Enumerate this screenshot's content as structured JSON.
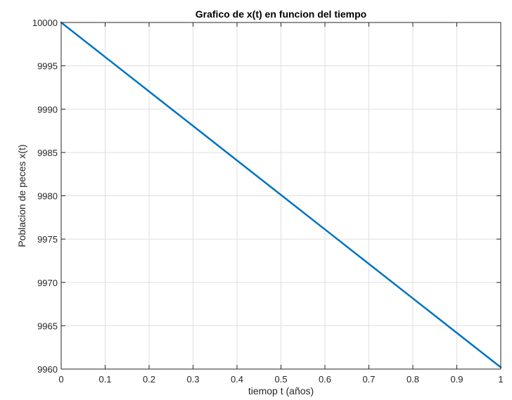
{
  "chart_data": {
    "type": "line",
    "title": "Grafico de x(t) en funcion del tiempo",
    "xlabel": "tiemop t (años)",
    "ylabel": "Poblacion de peces x(t)",
    "xlim": [
      0,
      1
    ],
    "ylim": [
      9960,
      10000
    ],
    "x_ticks": [
      0,
      0.1,
      0.2,
      0.3,
      0.4,
      0.5,
      0.6,
      0.7,
      0.8,
      0.9,
      1
    ],
    "x_tick_labels": [
      "0",
      "0.1",
      "0.2",
      "0.3",
      "0.4",
      "0.5",
      "0.6",
      "0.7",
      "0.8",
      "0.9",
      "1"
    ],
    "y_ticks": [
      9960,
      9965,
      9970,
      9975,
      9980,
      9985,
      9990,
      9995,
      10000
    ],
    "y_tick_labels": [
      "9960",
      "9965",
      "9970",
      "9975",
      "9980",
      "9985",
      "9990",
      "9995",
      "10000"
    ],
    "grid": true,
    "series": [
      {
        "color": "#0072bd",
        "x": [
          0,
          0.1,
          0.2,
          0.3,
          0.4,
          0.5,
          0.6,
          0.7,
          0.8,
          0.9,
          1
        ],
        "y": [
          10000,
          9996.02,
          9992.04,
          9988.06,
          9984.08,
          9980.1,
          9976.12,
          9972.14,
          9968.16,
          9964.18,
          9960.2
        ]
      }
    ]
  }
}
